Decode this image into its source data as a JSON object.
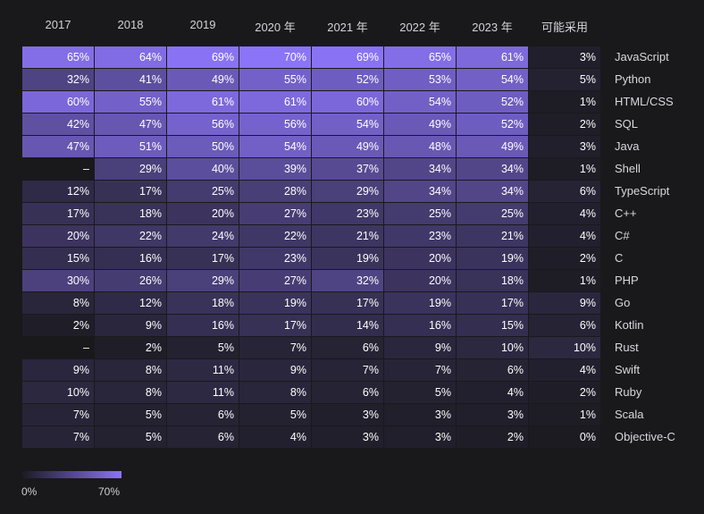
{
  "colors": {
    "background": "#19191c",
    "scale_low": "#1c1b22",
    "scale_high": "#8b74f7"
  },
  "chart_data": {
    "type": "heatmap",
    "title": "",
    "xlabel": "",
    "ylabel": "",
    "columns": [
      "2017",
      "2018",
      "2019",
      "2020 年",
      "2021 年",
      "2022 年",
      "2023 年",
      "可能采用"
    ],
    "rows": [
      "JavaScript",
      "Python",
      "HTML/CSS",
      "SQL",
      "Java",
      "Shell",
      "TypeScript",
      "C++",
      "C#",
      "C",
      "PHP",
      "Go",
      "Kotlin",
      "Rust",
      "Swift",
      "Ruby",
      "Scala",
      "Objective-C"
    ],
    "values": [
      [
        65,
        64,
        69,
        70,
        69,
        65,
        61,
        3
      ],
      [
        32,
        41,
        49,
        55,
        52,
        53,
        54,
        5
      ],
      [
        60,
        55,
        61,
        61,
        60,
        54,
        52,
        1
      ],
      [
        42,
        47,
        56,
        56,
        54,
        49,
        52,
        2
      ],
      [
        47,
        51,
        50,
        54,
        49,
        48,
        49,
        3
      ],
      [
        null,
        29,
        40,
        39,
        37,
        34,
        34,
        1
      ],
      [
        12,
        17,
        25,
        28,
        29,
        34,
        34,
        6
      ],
      [
        17,
        18,
        20,
        27,
        23,
        25,
        25,
        4
      ],
      [
        20,
        22,
        24,
        22,
        21,
        23,
        21,
        4
      ],
      [
        15,
        16,
        17,
        23,
        19,
        20,
        19,
        2
      ],
      [
        30,
        26,
        29,
        27,
        32,
        20,
        18,
        1
      ],
      [
        8,
        12,
        18,
        19,
        17,
        19,
        17,
        9
      ],
      [
        2,
        9,
        16,
        17,
        14,
        16,
        15,
        6
      ],
      [
        null,
        2,
        5,
        7,
        6,
        9,
        10,
        10
      ],
      [
        9,
        8,
        11,
        9,
        7,
        7,
        6,
        4
      ],
      [
        10,
        8,
        11,
        8,
        6,
        5,
        4,
        2
      ],
      [
        7,
        5,
        6,
        5,
        3,
        3,
        3,
        1
      ],
      [
        7,
        5,
        6,
        4,
        3,
        3,
        2,
        0
      ]
    ],
    "missing_label": "–",
    "unit": "%",
    "color_scale": {
      "min": 0,
      "max": 70
    },
    "legend": {
      "min_label": "0%",
      "max_label": "70%"
    }
  }
}
